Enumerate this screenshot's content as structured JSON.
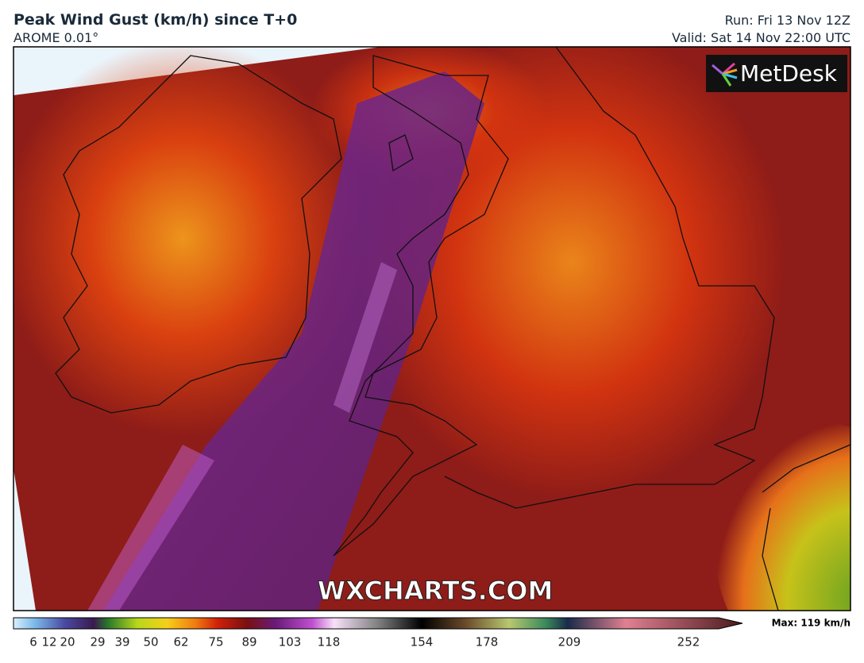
{
  "header": {
    "title": "Peak Wind Gust (km/h) since T+0",
    "subtitle": "AROME 0.01°",
    "run": "Run: Fri 13 Nov 12Z",
    "valid": "Valid: Sat 14 Nov 22:00 UTC"
  },
  "logo": "MetDesk",
  "watermark": "WXCHARTS.COM",
  "colorbar": {
    "ticks": [
      6,
      12,
      20,
      29,
      39,
      50,
      62,
      75,
      89,
      103,
      118,
      154,
      178,
      209,
      252
    ],
    "max_label": "Max: 119 km/h"
  }
}
